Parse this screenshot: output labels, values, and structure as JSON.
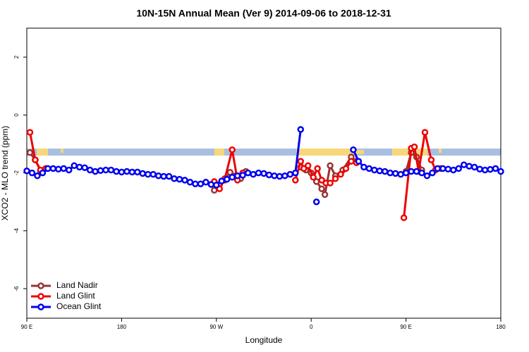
{
  "chart_data": {
    "type": "line",
    "title": "10N-15N Annual Mean (Ver 9)   2014-09-06 to 2018-12-31",
    "x_label": "Longitude",
    "y_label": "XCO2 - MLO trend (ppm)",
    "xlim": [
      90,
      540
    ],
    "ylim": [
      -7.02,
      3
    ],
    "xticks": [
      {
        "value": 90,
        "label": "90 E"
      },
      180,
      {
        "value": 270,
        "label": "90 W"
      },
      {
        "value": 360,
        "label": "0"
      },
      {
        "value": 450,
        "label": "90 E"
      },
      {
        "value": 540,
        "label": "180"
      }
    ],
    "yticks": [
      -6,
      -4,
      -2,
      0,
      2
    ],
    "legend": "bottom-left",
    "series": [
      {
        "name": "Land Nadir",
        "color": "#993333",
        "x": [
          93,
          98,
          103,
          108,
          200,
          268,
          273,
          278,
          283,
          288,
          293,
          298,
          320,
          350,
          355,
          360,
          365,
          370,
          373,
          378,
          383,
          390,
          398,
          403,
          420,
          450,
          455,
          460,
          465
        ],
        "values": [
          -1.3,
          -1.55,
          -1.93,
          -1.85,
          null,
          -2.6,
          -2.4,
          -2.25,
          -1.98,
          -2.1,
          -2.2,
          -1.95,
          null,
          -1.8,
          -1.9,
          -2.0,
          -2.3,
          -2.55,
          -2.75,
          -1.75,
          -2.1,
          -1.9,
          -1.45,
          -1.6,
          null,
          -1.95,
          -1.3,
          -1.45,
          -1.9
        ]
      },
      {
        "name": "Land Glint",
        "color": "#ee0000",
        "x": [
          93,
          98,
          103,
          108,
          200,
          268,
          273,
          278,
          285,
          290,
          295,
          320,
          345,
          350,
          353,
          357,
          362,
          366,
          370,
          374,
          378,
          383,
          388,
          393,
          398,
          403,
          420,
          448,
          455,
          458,
          462,
          468,
          474,
          478,
          483
        ],
        "values": [
          -0.6,
          -1.55,
          -1.9,
          -1.85,
          null,
          -2.3,
          -2.55,
          -2.2,
          -1.2,
          -2.25,
          -2.0,
          null,
          -2.25,
          -1.6,
          -1.85,
          -1.75,
          -2.15,
          -1.85,
          -2.25,
          -2.35,
          -2.35,
          -2.2,
          -2.05,
          -1.85,
          -1.6,
          -1.65,
          null,
          -3.55,
          -1.15,
          -1.1,
          -1.95,
          -0.6,
          -1.55,
          -1.9,
          -1.85
        ]
      },
      {
        "name": "Ocean Glint",
        "color": "#0000ee",
        "x": [
          90,
          95,
          100,
          105,
          110,
          115,
          120,
          125,
          130,
          135,
          140,
          145,
          150,
          155,
          160,
          165,
          170,
          175,
          180,
          185,
          190,
          195,
          200,
          205,
          210,
          215,
          220,
          225,
          230,
          235,
          240,
          245,
          250,
          255,
          260,
          265,
          270,
          275,
          280,
          285,
          290,
          295,
          300,
          305,
          310,
          315,
          320,
          325,
          330,
          335,
          340,
          345,
          350,
          357,
          365,
          380,
          400,
          405,
          410,
          415,
          420,
          425,
          430,
          435,
          440,
          445,
          450,
          455,
          460,
          465,
          470,
          475,
          480,
          485,
          490,
          495,
          500,
          505,
          510,
          515,
          520,
          525,
          530,
          535,
          540
        ],
        "values": [
          -1.93,
          -2.0,
          -2.1,
          -2.0,
          -1.85,
          -1.85,
          -1.87,
          -1.85,
          -1.9,
          -1.75,
          -1.8,
          -1.82,
          -1.9,
          -1.95,
          -1.92,
          -1.9,
          -1.9,
          -1.95,
          -1.97,
          -1.95,
          -1.97,
          -1.97,
          -2.02,
          -2.05,
          -2.05,
          -2.1,
          -2.12,
          -2.12,
          -2.2,
          -2.22,
          -2.25,
          -2.32,
          -2.38,
          -2.38,
          -2.32,
          -2.4,
          -2.42,
          -2.28,
          -2.22,
          -2.15,
          -2.1,
          -2.08,
          -2.0,
          -2.05,
          -2.0,
          -2.02,
          -2.07,
          -2.1,
          -2.12,
          -2.1,
          -2.05,
          -2.0,
          -0.5,
          null,
          -3.0,
          null,
          -1.2,
          -1.6,
          -1.8,
          -1.85,
          -1.9,
          -1.93,
          -1.95,
          -2.0,
          -2.02,
          -2.05,
          -2.0,
          -1.95,
          -1.95,
          -2.0,
          -2.1,
          -2.0,
          -1.85,
          -1.85,
          -1.87,
          -1.9,
          -1.85,
          -1.72,
          -1.77,
          -1.8,
          -1.87,
          -1.9,
          -1.88,
          -1.85,
          -1.95
        ]
      }
    ]
  }
}
